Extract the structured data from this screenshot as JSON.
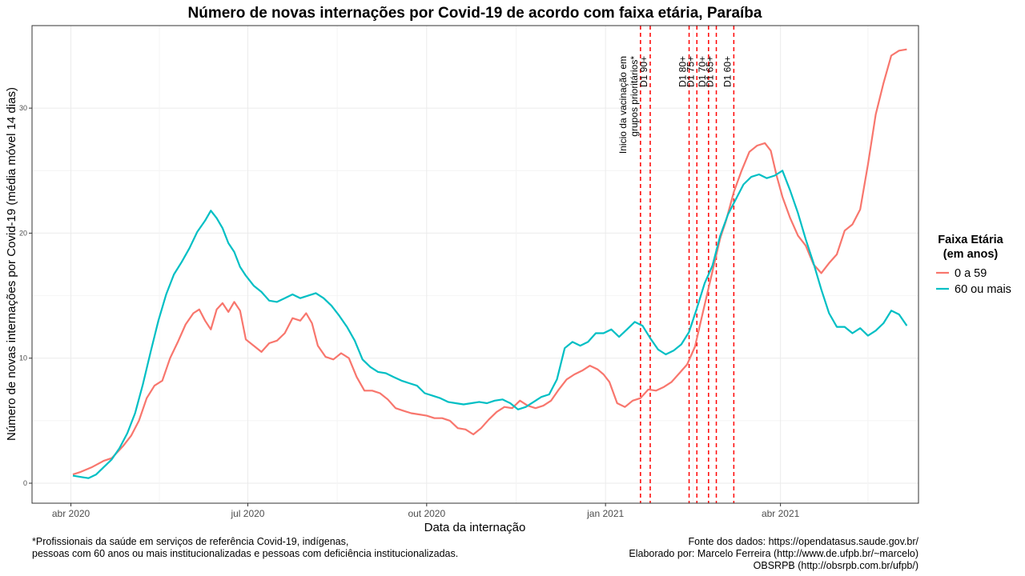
{
  "chart_data": {
    "type": "line",
    "title": "Número de novas internações por Covid-19 de acordo com faixa etária, Paraíba",
    "xlabel": "Data da internação",
    "ylabel": "Número de novas internações por Covid-19 (média móvel 14 dias)",
    "x_ticks": [
      {
        "date": "2020-04-01",
        "label": "abr 2020"
      },
      {
        "date": "2020-07-01",
        "label": "jul 2020"
      },
      {
        "date": "2020-10-01",
        "label": "out 2020"
      },
      {
        "date": "2021-01-01",
        "label": "jan 2021"
      },
      {
        "date": "2021-04-01",
        "label": "abr 2021"
      }
    ],
    "y_ticks": [
      0,
      10,
      20,
      30
    ],
    "xlim": [
      "2020-03-12",
      "2021-06-11"
    ],
    "ylim": [
      -1.6,
      36.6
    ],
    "grid": true,
    "legend": {
      "title_line1": "Faixa Etária",
      "title_line2": "(em anos)",
      "placement": "right"
    },
    "series": [
      {
        "name": "0 a 59",
        "color": "#F8766D",
        "points": [
          [
            "2020-04-02",
            0.7
          ],
          [
            "2020-04-06",
            0.9
          ],
          [
            "2020-04-12",
            1.3
          ],
          [
            "2020-04-18",
            1.8
          ],
          [
            "2020-04-22",
            2.0
          ],
          [
            "2020-04-28",
            3.0
          ],
          [
            "2020-05-02",
            3.8
          ],
          [
            "2020-05-06",
            5.0
          ],
          [
            "2020-05-10",
            6.8
          ],
          [
            "2020-05-14",
            7.8
          ],
          [
            "2020-05-18",
            8.2
          ],
          [
            "2020-05-22",
            10.0
          ],
          [
            "2020-05-26",
            11.3
          ],
          [
            "2020-05-30",
            12.7
          ],
          [
            "2020-06-03",
            13.6
          ],
          [
            "2020-06-06",
            13.9
          ],
          [
            "2020-06-09",
            13.0
          ],
          [
            "2020-06-12",
            12.3
          ],
          [
            "2020-06-15",
            13.9
          ],
          [
            "2020-06-18",
            14.4
          ],
          [
            "2020-06-21",
            13.7
          ],
          [
            "2020-06-24",
            14.5
          ],
          [
            "2020-06-27",
            13.8
          ],
          [
            "2020-06-30",
            11.5
          ],
          [
            "2020-07-04",
            11.0
          ],
          [
            "2020-07-08",
            10.5
          ],
          [
            "2020-07-12",
            11.2
          ],
          [
            "2020-07-16",
            11.4
          ],
          [
            "2020-07-20",
            12.0
          ],
          [
            "2020-07-24",
            13.2
          ],
          [
            "2020-07-28",
            13.0
          ],
          [
            "2020-07-31",
            13.6
          ],
          [
            "2020-08-03",
            12.8
          ],
          [
            "2020-08-06",
            11.0
          ],
          [
            "2020-08-10",
            10.1
          ],
          [
            "2020-08-14",
            9.9
          ],
          [
            "2020-08-18",
            10.4
          ],
          [
            "2020-08-22",
            10.0
          ],
          [
            "2020-08-26",
            8.5
          ],
          [
            "2020-08-30",
            7.4
          ],
          [
            "2020-09-03",
            7.4
          ],
          [
            "2020-09-07",
            7.2
          ],
          [
            "2020-09-11",
            6.7
          ],
          [
            "2020-09-15",
            6.0
          ],
          [
            "2020-09-19",
            5.8
          ],
          [
            "2020-09-23",
            5.6
          ],
          [
            "2020-09-27",
            5.5
          ],
          [
            "2020-10-01",
            5.4
          ],
          [
            "2020-10-05",
            5.2
          ],
          [
            "2020-10-09",
            5.2
          ],
          [
            "2020-10-13",
            5.0
          ],
          [
            "2020-10-17",
            4.4
          ],
          [
            "2020-10-21",
            4.3
          ],
          [
            "2020-10-25",
            3.9
          ],
          [
            "2020-10-29",
            4.4
          ],
          [
            "2020-11-02",
            5.1
          ],
          [
            "2020-11-06",
            5.7
          ],
          [
            "2020-11-10",
            6.1
          ],
          [
            "2020-11-14",
            6.0
          ],
          [
            "2020-11-18",
            6.6
          ],
          [
            "2020-11-22",
            6.2
          ],
          [
            "2020-11-26",
            6.0
          ],
          [
            "2020-11-30",
            6.2
          ],
          [
            "2020-12-04",
            6.6
          ],
          [
            "2020-12-08",
            7.5
          ],
          [
            "2020-12-12",
            8.3
          ],
          [
            "2020-12-16",
            8.7
          ],
          [
            "2020-12-20",
            9.0
          ],
          [
            "2020-12-24",
            9.4
          ],
          [
            "2020-12-28",
            9.1
          ],
          [
            "2020-12-31",
            8.7
          ],
          [
            "2021-01-03",
            8.1
          ],
          [
            "2021-01-07",
            6.4
          ],
          [
            "2021-01-11",
            6.1
          ],
          [
            "2021-01-15",
            6.6
          ],
          [
            "2021-01-19",
            6.8
          ],
          [
            "2021-01-23",
            7.5
          ],
          [
            "2021-01-27",
            7.4
          ],
          [
            "2021-01-31",
            7.7
          ],
          [
            "2021-02-04",
            8.1
          ],
          [
            "2021-02-08",
            8.8
          ],
          [
            "2021-02-12",
            9.5
          ],
          [
            "2021-02-16",
            10.9
          ],
          [
            "2021-02-20",
            13.6
          ],
          [
            "2021-02-23",
            15.6
          ],
          [
            "2021-02-26",
            17.6
          ],
          [
            "2021-03-01",
            19.6
          ],
          [
            "2021-03-04",
            21.0
          ],
          [
            "2021-03-08",
            23.3
          ],
          [
            "2021-03-12",
            25.0
          ],
          [
            "2021-03-16",
            26.5
          ],
          [
            "2021-03-20",
            27.0
          ],
          [
            "2021-03-24",
            27.2
          ],
          [
            "2021-03-27",
            26.6
          ],
          [
            "2021-03-30",
            24.6
          ],
          [
            "2021-04-02",
            22.9
          ],
          [
            "2021-04-06",
            21.2
          ],
          [
            "2021-04-10",
            19.8
          ],
          [
            "2021-04-14",
            19.0
          ],
          [
            "2021-04-18",
            17.5
          ],
          [
            "2021-04-22",
            16.8
          ],
          [
            "2021-04-26",
            17.6
          ],
          [
            "2021-04-30",
            18.3
          ],
          [
            "2021-05-04",
            20.2
          ],
          [
            "2021-05-08",
            20.7
          ],
          [
            "2021-05-12",
            21.9
          ],
          [
            "2021-05-16",
            25.5
          ],
          [
            "2021-05-20",
            29.5
          ],
          [
            "2021-05-24",
            32.0
          ],
          [
            "2021-05-28",
            34.2
          ],
          [
            "2021-06-01",
            34.6
          ],
          [
            "2021-06-05",
            34.7
          ]
        ]
      },
      {
        "name": "60 ou mais",
        "color": "#00BFC4",
        "points": [
          [
            "2020-04-02",
            0.6
          ],
          [
            "2020-04-06",
            0.5
          ],
          [
            "2020-04-10",
            0.4
          ],
          [
            "2020-04-14",
            0.7
          ],
          [
            "2020-04-18",
            1.3
          ],
          [
            "2020-04-22",
            1.9
          ],
          [
            "2020-04-26",
            2.8
          ],
          [
            "2020-04-30",
            4.0
          ],
          [
            "2020-05-04",
            5.6
          ],
          [
            "2020-05-08",
            7.9
          ],
          [
            "2020-05-12",
            10.5
          ],
          [
            "2020-05-16",
            13.0
          ],
          [
            "2020-05-20",
            15.1
          ],
          [
            "2020-05-24",
            16.7
          ],
          [
            "2020-05-28",
            17.7
          ],
          [
            "2020-06-01",
            18.8
          ],
          [
            "2020-06-05",
            20.1
          ],
          [
            "2020-06-09",
            21.0
          ],
          [
            "2020-06-12",
            21.8
          ],
          [
            "2020-06-15",
            21.2
          ],
          [
            "2020-06-18",
            20.4
          ],
          [
            "2020-06-21",
            19.2
          ],
          [
            "2020-06-24",
            18.5
          ],
          [
            "2020-06-27",
            17.3
          ],
          [
            "2020-06-30",
            16.6
          ],
          [
            "2020-07-04",
            15.8
          ],
          [
            "2020-07-08",
            15.3
          ],
          [
            "2020-07-12",
            14.6
          ],
          [
            "2020-07-16",
            14.5
          ],
          [
            "2020-07-20",
            14.8
          ],
          [
            "2020-07-24",
            15.1
          ],
          [
            "2020-07-28",
            14.8
          ],
          [
            "2020-08-01",
            15.0
          ],
          [
            "2020-08-05",
            15.2
          ],
          [
            "2020-08-09",
            14.8
          ],
          [
            "2020-08-13",
            14.2
          ],
          [
            "2020-08-17",
            13.4
          ],
          [
            "2020-08-21",
            12.5
          ],
          [
            "2020-08-25",
            11.4
          ],
          [
            "2020-08-29",
            9.9
          ],
          [
            "2020-09-02",
            9.3
          ],
          [
            "2020-09-06",
            8.9
          ],
          [
            "2020-09-10",
            8.8
          ],
          [
            "2020-09-14",
            8.5
          ],
          [
            "2020-09-18",
            8.2
          ],
          [
            "2020-09-22",
            8.0
          ],
          [
            "2020-09-26",
            7.8
          ],
          [
            "2020-09-30",
            7.2
          ],
          [
            "2020-10-04",
            7.0
          ],
          [
            "2020-10-08",
            6.8
          ],
          [
            "2020-10-12",
            6.5
          ],
          [
            "2020-10-16",
            6.4
          ],
          [
            "2020-10-20",
            6.3
          ],
          [
            "2020-10-24",
            6.4
          ],
          [
            "2020-10-28",
            6.5
          ],
          [
            "2020-11-01",
            6.4
          ],
          [
            "2020-11-05",
            6.6
          ],
          [
            "2020-11-09",
            6.7
          ],
          [
            "2020-11-13",
            6.4
          ],
          [
            "2020-11-17",
            5.9
          ],
          [
            "2020-11-21",
            6.1
          ],
          [
            "2020-11-25",
            6.5
          ],
          [
            "2020-11-29",
            6.9
          ],
          [
            "2020-12-03",
            7.1
          ],
          [
            "2020-12-07",
            8.3
          ],
          [
            "2020-12-11",
            10.8
          ],
          [
            "2020-12-15",
            11.3
          ],
          [
            "2020-12-19",
            11.0
          ],
          [
            "2020-12-23",
            11.3
          ],
          [
            "2020-12-27",
            12.0
          ],
          [
            "2020-12-31",
            12.0
          ],
          [
            "2021-01-04",
            12.3
          ],
          [
            "2021-01-08",
            11.7
          ],
          [
            "2021-01-12",
            12.3
          ],
          [
            "2021-01-16",
            12.9
          ],
          [
            "2021-01-20",
            12.6
          ],
          [
            "2021-01-24",
            11.6
          ],
          [
            "2021-01-28",
            10.7
          ],
          [
            "2021-02-01",
            10.3
          ],
          [
            "2021-02-05",
            10.6
          ],
          [
            "2021-02-09",
            11.1
          ],
          [
            "2021-02-13",
            12.1
          ],
          [
            "2021-02-17",
            14.0
          ],
          [
            "2021-02-21",
            16.0
          ],
          [
            "2021-02-25",
            17.4
          ],
          [
            "2021-03-01",
            19.8
          ],
          [
            "2021-03-05",
            21.5
          ],
          [
            "2021-03-09",
            22.7
          ],
          [
            "2021-03-13",
            23.9
          ],
          [
            "2021-03-17",
            24.5
          ],
          [
            "2021-03-21",
            24.7
          ],
          [
            "2021-03-25",
            24.4
          ],
          [
            "2021-03-29",
            24.6
          ],
          [
            "2021-04-02",
            25.0
          ],
          [
            "2021-04-06",
            23.4
          ],
          [
            "2021-04-10",
            21.6
          ],
          [
            "2021-04-14",
            19.5
          ],
          [
            "2021-04-18",
            17.6
          ],
          [
            "2021-04-22",
            15.5
          ],
          [
            "2021-04-26",
            13.6
          ],
          [
            "2021-04-30",
            12.5
          ],
          [
            "2021-05-04",
            12.5
          ],
          [
            "2021-05-08",
            12.0
          ],
          [
            "2021-05-12",
            12.4
          ],
          [
            "2021-05-16",
            11.8
          ],
          [
            "2021-05-20",
            12.2
          ],
          [
            "2021-05-24",
            12.8
          ],
          [
            "2021-05-28",
            13.8
          ],
          [
            "2021-06-01",
            13.5
          ],
          [
            "2021-06-05",
            12.6
          ]
        ]
      }
    ],
    "vlines": [
      {
        "date": "2021-01-19",
        "label_line1": "Inicio da vacinação em",
        "label_line2": "grupos prioritários*"
      },
      {
        "date": "2021-01-24",
        "label_line1": "D1 90+",
        "label_line2": ""
      },
      {
        "date": "2021-02-13",
        "label_line1": "D1 80+",
        "label_line2": ""
      },
      {
        "date": "2021-02-17",
        "label_line1": "D1 75+",
        "label_line2": ""
      },
      {
        "date": "2021-02-23",
        "label_line1": "D1 70+",
        "label_line2": ""
      },
      {
        "date": "2021-02-27",
        "label_line1": "D1 65+",
        "label_line2": ""
      },
      {
        "date": "2021-03-08",
        "label_line1": "D1 60+",
        "label_line2": ""
      }
    ],
    "vline_color": "#FF0000"
  },
  "footnote": {
    "line1": "*Profissionais da saúde em serviços de referência Covid-19, indígenas,",
    "line2": "pessoas com 60 anos ou mais institucionalizadas e pessoas com deficiência institucionalizadas."
  },
  "credits": {
    "line1": "Fonte dos dados: https://opendatasus.saude.gov.br/",
    "line2": "Elaborado por: Marcelo Ferreira (http://www.de.ufpb.br/~marcelo)",
    "line3": "OBSRPB (http://obsrpb.com.br/ufpb/)"
  }
}
